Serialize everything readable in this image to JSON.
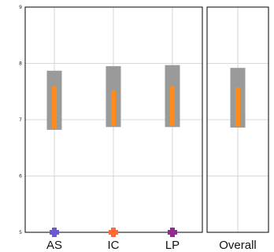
{
  "chart_data": [
    {
      "type": "box",
      "panel": "per-category",
      "categories": [
        "AS",
        "IC",
        "LP"
      ],
      "marker_colors": [
        "#6a5acd",
        "#ff6b35",
        "#8e2d8e"
      ],
      "boxes": [
        {
          "category": "AS",
          "low": 6.82,
          "high": 7.87,
          "inner_low": 6.84,
          "inner_high": 7.6
        },
        {
          "category": "IC",
          "low": 6.87,
          "high": 7.95,
          "inner_low": 6.89,
          "inner_high": 7.52
        },
        {
          "category": "LP",
          "low": 6.87,
          "high": 7.97,
          "inner_low": 6.89,
          "inner_high": 7.6
        }
      ],
      "ylim": [
        5,
        9
      ],
      "yticks": [
        "5",
        "6",
        "7",
        "8",
        "9"
      ],
      "grid": true,
      "colors": {
        "outer": "#9a9a9a",
        "inner": "#ff8c1a",
        "grid": "#cccccc"
      }
    },
    {
      "type": "box",
      "panel": "overall",
      "categories": [
        "Overall"
      ],
      "boxes": [
        {
          "category": "Overall",
          "low": 6.86,
          "high": 7.92,
          "inner_low": 6.88,
          "inner_high": 7.57
        }
      ],
      "ylim": [
        5,
        9
      ],
      "grid": true,
      "colors": {
        "outer": "#9a9a9a",
        "inner": "#ff8c1a",
        "grid": "#cccccc"
      }
    }
  ]
}
